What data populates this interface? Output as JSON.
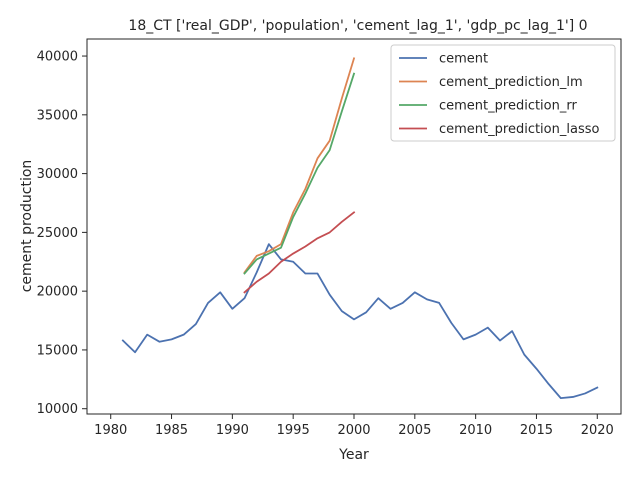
{
  "chart_data": {
    "type": "line",
    "title": "18_CT ['real_GDP', 'population', 'cement_lag_1', 'gdp_pc_lag_1'] 0",
    "xlabel": "Year",
    "ylabel": "cement production",
    "xlim": [
      1978.05,
      2021.95
    ],
    "ylim": [
      9550,
      41450
    ],
    "xticks": [
      1980,
      1985,
      1990,
      1995,
      2000,
      2005,
      2010,
      2015,
      2020
    ],
    "yticks": [
      10000,
      15000,
      20000,
      25000,
      30000,
      35000,
      40000
    ],
    "legend_position": "top-right",
    "grid": false,
    "series": [
      {
        "name": "cement",
        "color": "#4c72b0",
        "x": [
          1981,
          1982,
          1983,
          1984,
          1985,
          1986,
          1987,
          1988,
          1989,
          1990,
          1991,
          1992,
          1993,
          1994,
          1995,
          1996,
          1997,
          1998,
          1999,
          2000,
          2001,
          2002,
          2003,
          2004,
          2005,
          2006,
          2007,
          2008,
          2009,
          2010,
          2011,
          2012,
          2013,
          2014,
          2015,
          2016,
          2017,
          2018,
          2019,
          2020
        ],
        "y": [
          15800,
          14800,
          16300,
          15700,
          15900,
          16300,
          17200,
          19000,
          19900,
          18500,
          19400,
          21600,
          24000,
          22700,
          22500,
          21500,
          21500,
          19700,
          18300,
          17600,
          18200,
          19400,
          18500,
          19000,
          19900,
          19300,
          19000,
          17300,
          15900,
          16300,
          16900,
          15800,
          16600,
          14600,
          13400,
          12100,
          10900,
          11000,
          11300,
          11800
        ]
      },
      {
        "name": "cement_prediction_lm",
        "color": "#dd8452",
        "x": [
          1991,
          1992,
          1993,
          1994,
          1995,
          1996,
          1997,
          1998,
          1999,
          2000
        ],
        "y": [
          21600,
          23000,
          23400,
          24000,
          26700,
          28700,
          31300,
          32800,
          36400,
          39800
        ]
      },
      {
        "name": "cement_prediction_rr",
        "color": "#55a868",
        "x": [
          1991,
          1992,
          1993,
          1994,
          1995,
          1996,
          1997,
          1998,
          1999,
          2000
        ],
        "y": [
          21500,
          22700,
          23200,
          23700,
          26300,
          28300,
          30500,
          32000,
          35300,
          38500
        ]
      },
      {
        "name": "cement_prediction_lasso",
        "color": "#c44e52",
        "x": [
          1991,
          1992,
          1993,
          1994,
          1995,
          1996,
          1997,
          1998,
          1999,
          2000
        ],
        "y": [
          19900,
          20800,
          21500,
          22500,
          23200,
          23800,
          24500,
          25000,
          25900,
          26700
        ]
      }
    ]
  }
}
